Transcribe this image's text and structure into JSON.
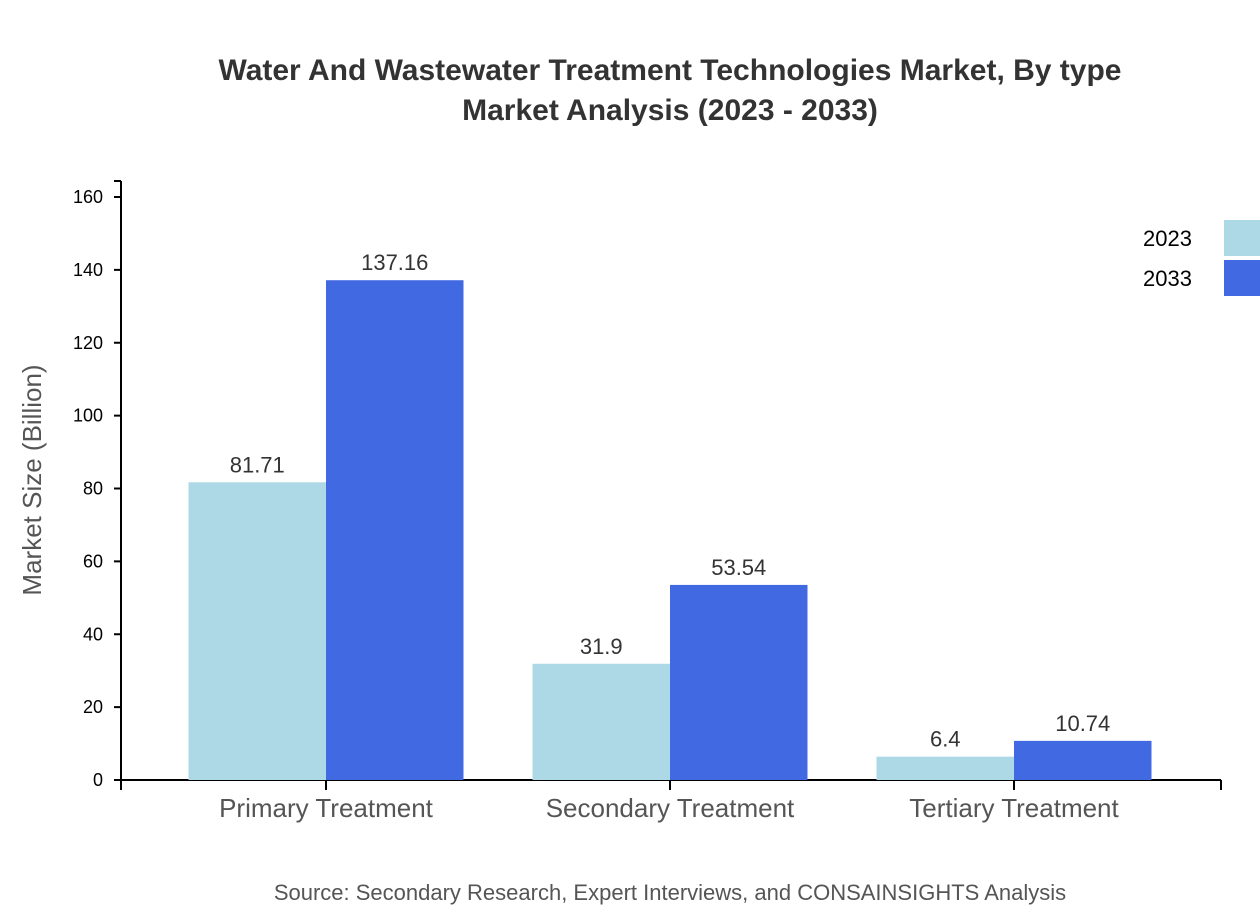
{
  "chart_data": {
    "type": "bar",
    "title_line1": "Water And Wastewater Treatment Technologies Market, By type",
    "title_line2": "Market Analysis (2023 - 2033)",
    "xlabel": "",
    "ylabel": "Market Size (Billion)",
    "ylim": [
      0,
      165
    ],
    "yticks": [
      0,
      20,
      40,
      60,
      80,
      100,
      120,
      140,
      160
    ],
    "categories": [
      "Primary Treatment",
      "Secondary Treatment",
      "Tertiary Treatment"
    ],
    "series": [
      {
        "name": "2023",
        "color": "#add8e6",
        "values": [
          81.71,
          31.9,
          6.4
        ],
        "labels": [
          "81.71",
          "31.9",
          "6.4"
        ]
      },
      {
        "name": "2033",
        "color": "#4169e1",
        "values": [
          137.16,
          53.54,
          10.74
        ],
        "labels": [
          "137.16",
          "53.54",
          "10.74"
        ]
      }
    ],
    "legend_position": "top-right",
    "grid": false,
    "source": "Source: Secondary Research, Expert Interviews, and CONSAINSIGHTS Analysis"
  }
}
